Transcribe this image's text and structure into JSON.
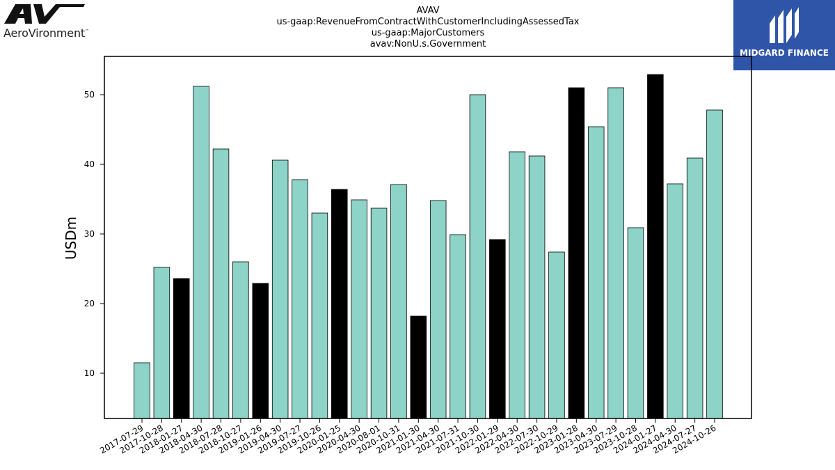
{
  "branding": {
    "left_logo_mark": "AV",
    "left_logo_text": "AeroVironment",
    "left_logo_tm": "™",
    "right_logo_text": "MIDGARD FINANCE"
  },
  "colors": {
    "teal": "#8dd3c7",
    "black": "#000000",
    "brand_blue": "#2f55a8"
  },
  "chart_data": {
    "type": "bar",
    "title_lines": [
      "AVAV",
      "us-gaap:RevenueFromContractWithCustomerIncludingAssessedTax",
      "us-gaap:MajorCustomers",
      "avav:NonU.s.Government"
    ],
    "xlabel": "",
    "ylabel": "USDm",
    "ylim": [
      3.5,
      55.5
    ],
    "yticks": [
      10,
      20,
      30,
      40,
      50
    ],
    "grid": false,
    "categories": [
      "2017-07-29",
      "2017-10-28",
      "2018-01-27",
      "2018-04-30",
      "2018-07-28",
      "2018-10-27",
      "2019-01-26",
      "2019-04-30",
      "2019-07-27",
      "2019-10-26",
      "2020-01-25",
      "2020-04-30",
      "2020-08-01",
      "2020-10-31",
      "2021-01-30",
      "2021-04-30",
      "2021-07-31",
      "2021-10-30",
      "2022-01-29",
      "2022-04-30",
      "2022-07-30",
      "2022-10-29",
      "2023-01-28",
      "2023-04-30",
      "2023-07-29",
      "2023-10-28",
      "2024-01-27",
      "2024-04-30",
      "2024-07-27",
      "2024-10-26"
    ],
    "values": [
      11.5,
      25.2,
      23.6,
      51.2,
      42.2,
      26.0,
      22.9,
      40.6,
      37.8,
      33.0,
      36.4,
      34.9,
      33.7,
      37.1,
      18.2,
      34.8,
      29.9,
      50.0,
      29.2,
      41.8,
      41.2,
      27.4,
      51.0,
      45.4,
      51.0,
      30.9,
      52.9,
      37.2,
      40.9,
      47.8
    ],
    "highlight": [
      false,
      false,
      true,
      false,
      false,
      false,
      true,
      false,
      false,
      false,
      true,
      false,
      false,
      false,
      true,
      false,
      false,
      false,
      true,
      false,
      false,
      false,
      true,
      false,
      false,
      false,
      true,
      false,
      false,
      false
    ]
  }
}
